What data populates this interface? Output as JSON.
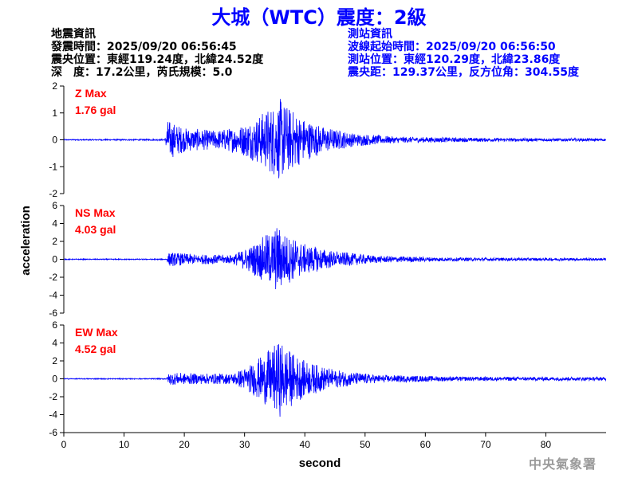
{
  "title": "大城（WTC）震度：2級",
  "event_info": {
    "heading": "地震資訊",
    "origin_time": "發震時間：2025/09/20 06:56:45",
    "epicenter": "震央位置：東經119.24度，北緯24.52度",
    "depth_magnitude": "深　度：17.2公里，芮氏規模：5.0"
  },
  "station_info": {
    "heading": "測站資訊",
    "wave_start": "波線起始時間：2025/09/20 06:56:50",
    "station_location": "測站位置：東經120.29度，北緯23.86度",
    "distance_azimuth": "震央距：129.37公里，反方位角：304.55度"
  },
  "agency": "中央氣象署",
  "colors": {
    "trace": "#0000ff",
    "max_label": "#ff0000",
    "title": "#0000ff",
    "axis": "#000000"
  },
  "chart_data": {
    "type": "line",
    "xlabel": "second",
    "ylabel": "acceleration",
    "xlim": [
      0,
      90
    ],
    "xticks": [
      0,
      10,
      20,
      30,
      40,
      50,
      60,
      70,
      80
    ],
    "panels": [
      {
        "component": "Z",
        "max_label": "Z Max",
        "max_value": "1.76 gal",
        "ylim": [
          -2,
          2
        ],
        "yticks": [
          -2,
          -1,
          0,
          1,
          2
        ],
        "envelope": [
          {
            "t": 0,
            "a": 0.02
          },
          {
            "t": 16.8,
            "a": 0.03
          },
          {
            "t": 17.2,
            "a": 0.75
          },
          {
            "t": 20,
            "a": 0.45
          },
          {
            "t": 25,
            "a": 0.35
          },
          {
            "t": 29,
            "a": 0.5
          },
          {
            "t": 32,
            "a": 0.85
          },
          {
            "t": 34.5,
            "a": 1.3
          },
          {
            "t": 36,
            "a": 1.55
          },
          {
            "t": 37.5,
            "a": 1.2
          },
          {
            "t": 40,
            "a": 0.8
          },
          {
            "t": 43,
            "a": 0.5
          },
          {
            "t": 48,
            "a": 0.25
          },
          {
            "t": 55,
            "a": 0.12
          },
          {
            "t": 70,
            "a": 0.07
          },
          {
            "t": 90,
            "a": 0.05
          }
        ]
      },
      {
        "component": "NS",
        "max_label": "NS Max",
        "max_value": "4.03 gal",
        "ylim": [
          -6,
          6
        ],
        "yticks": [
          -6,
          -4,
          -2,
          0,
          2,
          4,
          6
        ],
        "envelope": [
          {
            "t": 0,
            "a": 0.05
          },
          {
            "t": 17,
            "a": 0.06
          },
          {
            "t": 17.5,
            "a": 0.8
          },
          {
            "t": 22,
            "a": 0.55
          },
          {
            "t": 28,
            "a": 0.5
          },
          {
            "t": 31,
            "a": 1.5
          },
          {
            "t": 34,
            "a": 3.0
          },
          {
            "t": 35.5,
            "a": 3.9
          },
          {
            "t": 37,
            "a": 2.8
          },
          {
            "t": 40,
            "a": 1.7
          },
          {
            "t": 45,
            "a": 0.9
          },
          {
            "t": 52,
            "a": 0.4
          },
          {
            "t": 65,
            "a": 0.2
          },
          {
            "t": 90,
            "a": 0.15
          }
        ]
      },
      {
        "component": "EW",
        "max_label": "EW Max",
        "max_value": "4.52 gal",
        "ylim": [
          -6,
          6
        ],
        "yticks": [
          -6,
          -4,
          -2,
          0,
          2,
          4,
          6
        ],
        "envelope": [
          {
            "t": 0,
            "a": 0.05
          },
          {
            "t": 17,
            "a": 0.06
          },
          {
            "t": 17.5,
            "a": 0.7
          },
          {
            "t": 22,
            "a": 0.6
          },
          {
            "t": 28,
            "a": 0.6
          },
          {
            "t": 31,
            "a": 1.6
          },
          {
            "t": 34,
            "a": 3.2
          },
          {
            "t": 36,
            "a": 4.3
          },
          {
            "t": 37.5,
            "a": 3.2
          },
          {
            "t": 40,
            "a": 2.0
          },
          {
            "t": 45,
            "a": 1.0
          },
          {
            "t": 52,
            "a": 0.45
          },
          {
            "t": 65,
            "a": 0.25
          },
          {
            "t": 90,
            "a": 0.2
          }
        ]
      }
    ]
  }
}
